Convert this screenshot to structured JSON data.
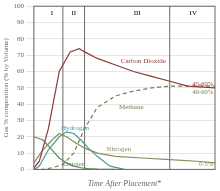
{
  "chart_data": {
    "type": "line",
    "xlabel": "Time After Placement*",
    "ylabel": "Gas % composition (% by Volume)",
    "xlim": [
      0,
      100
    ],
    "ylim": [
      0,
      100
    ],
    "yticks": [
      0,
      10,
      20,
      30,
      40,
      50,
      60,
      70,
      80,
      90,
      100
    ],
    "tick_labels": "y",
    "grid": "y",
    "legend": false,
    "vlines": [
      16,
      28,
      75
    ],
    "phase_labels": [
      {
        "text": "I",
        "x": 10,
        "y": 98
      },
      {
        "text": "II",
        "x": 22,
        "y": 98
      },
      {
        "text": "III",
        "x": 57,
        "y": 98
      },
      {
        "text": "IV",
        "x": 88,
        "y": 98
      }
    ],
    "annotations": [
      {
        "text": "45-60%",
        "x": 99,
        "y": 52,
        "color": "#8B3A3A"
      },
      {
        "text": "40-60%",
        "x": 99,
        "y": 47,
        "color": "#7a7a50"
      },
      {
        "text": "0-5%",
        "x": 99,
        "y": 3,
        "color": "#8B8B5A"
      }
    ],
    "series": [
      {
        "name": "Carbon Dioxide",
        "color": "#8B3A3A",
        "line_style": "solid",
        "x": [
          0,
          3,
          8,
          14,
          20,
          25,
          28,
          35,
          45,
          55,
          65,
          75,
          85,
          100
        ],
        "values": [
          1,
          5,
          25,
          60,
          72,
          74,
          72,
          68,
          64,
          60,
          57,
          54,
          51,
          50
        ],
        "label_pos": [
          48,
          65
        ]
      },
      {
        "name": "Methane",
        "color": "#7a7a50",
        "line_style": "dashed",
        "x": [
          0,
          5,
          10,
          16,
          22,
          28,
          35,
          45,
          55,
          65,
          75,
          85,
          100
        ],
        "values": [
          0,
          0,
          1,
          3,
          10,
          25,
          38,
          45,
          48,
          50,
          51,
          51,
          51
        ],
        "label_pos": [
          47,
          37
        ]
      },
      {
        "name": "Nitrogen",
        "color": "#8B8B5A",
        "line_style": "solid",
        "x": [
          0,
          5,
          10,
          14,
          18,
          22,
          28,
          35,
          45,
          60,
          75,
          90,
          100
        ],
        "values": [
          4,
          12,
          18,
          22,
          20,
          17,
          13,
          10,
          8,
          7,
          6,
          5,
          4
        ],
        "label_pos": [
          40,
          11
        ]
      },
      {
        "name": "Oxygen",
        "color": "#5a8b5a",
        "line_style": "solid",
        "x": [
          0,
          5,
          10,
          14,
          18,
          22,
          26,
          30,
          35,
          45
        ],
        "values": [
          20,
          18,
          12,
          7,
          4,
          2,
          1,
          0.5,
          0.2,
          0
        ],
        "label_pos": [
          16,
          2
        ]
      },
      {
        "name": "Hydrogen",
        "color": "#4a9a9a",
        "line_style": "solid",
        "x": [
          0,
          3,
          8,
          14,
          18,
          22,
          26,
          30,
          35,
          42,
          50
        ],
        "values": [
          0,
          2,
          12,
          20,
          23,
          22,
          18,
          13,
          8,
          2,
          0
        ],
        "label_pos": [
          15,
          24
        ]
      }
    ]
  }
}
